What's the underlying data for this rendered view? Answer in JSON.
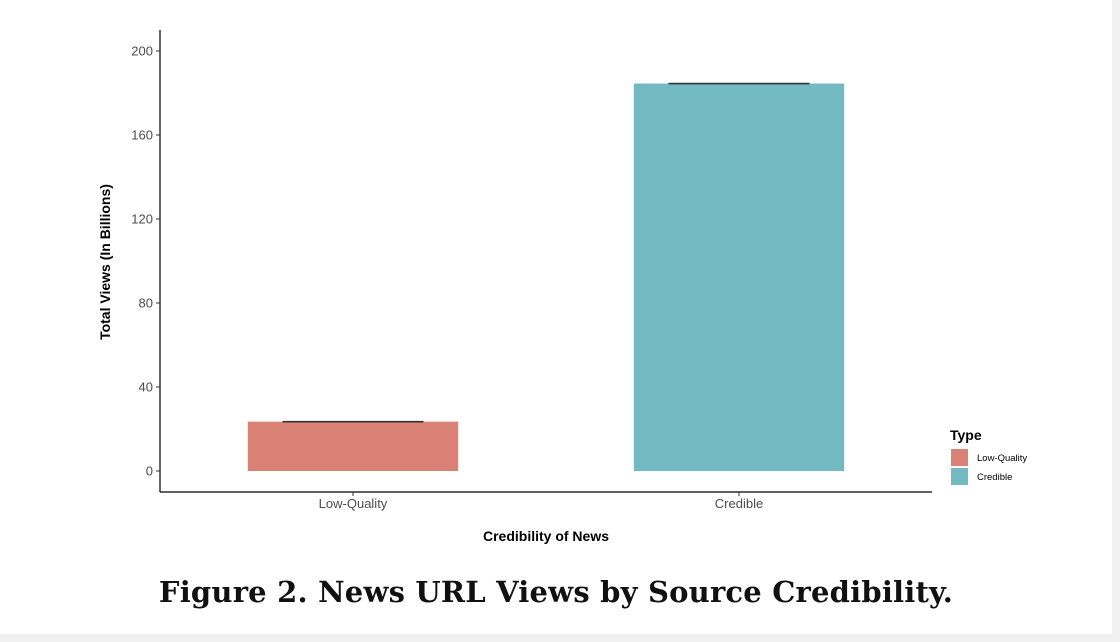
{
  "figure": {
    "caption": "Figure 2. News URL Views by Source Credibility."
  },
  "chart_data": {
    "type": "bar",
    "categories": [
      "Low-Quality",
      "Credible"
    ],
    "values": [
      23.5,
      184.5
    ],
    "error_caps": [
      23.5,
      184.5
    ],
    "colors": [
      "#DB8276",
      "#72B9C1"
    ],
    "xlabel": "Credibility of News",
    "ylabel": "Total Views (In Billions)",
    "ylim": [
      -10,
      210
    ],
    "yticks": [
      0,
      40,
      80,
      120,
      160,
      200
    ],
    "grid": false,
    "legend": {
      "title": "Type",
      "placement": "right",
      "entries": [
        {
          "label": "Low-Quality",
          "color": "#DB8276"
        },
        {
          "label": "Credible",
          "color": "#72B9C1"
        }
      ]
    }
  }
}
